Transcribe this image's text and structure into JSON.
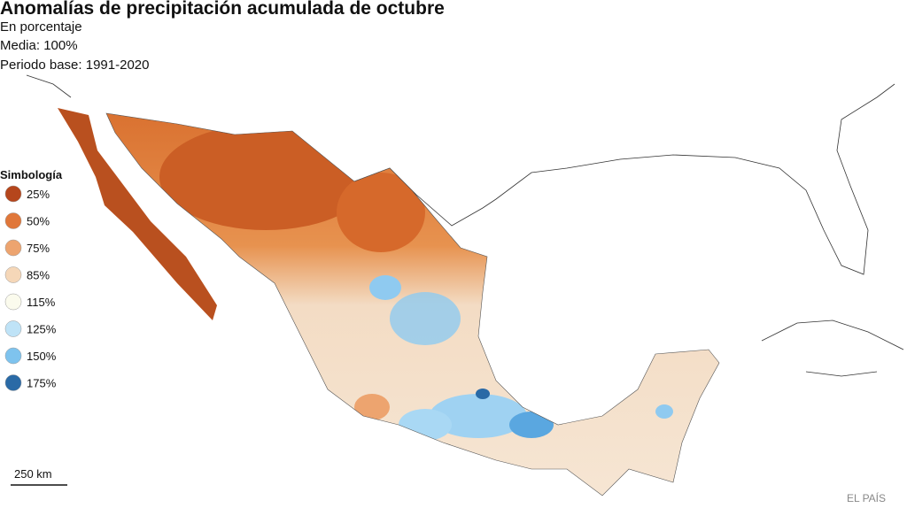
{
  "header": {
    "title": "Anomalías de precipitación acumulada de octubre",
    "subtitle": "En porcentaje",
    "mean": "Media: 100%",
    "base": "Periodo base: 1991-2020"
  },
  "legend": {
    "title": "Simbología",
    "items": [
      {
        "label": "25%",
        "color": "#b5461c"
      },
      {
        "label": "50%",
        "color": "#e0773a"
      },
      {
        "label": "75%",
        "color": "#eda46f"
      },
      {
        "label": "85%",
        "color": "#f5d7b8"
      },
      {
        "label": "115%",
        "color": "#fbfbed"
      },
      {
        "label": "125%",
        "color": "#bfe3f7"
      },
      {
        "label": "150%",
        "color": "#7ec3ee"
      },
      {
        "label": "175%",
        "color": "#2a6aa6"
      }
    ]
  },
  "scale": "250 km",
  "credit": "EL PAÍS"
}
